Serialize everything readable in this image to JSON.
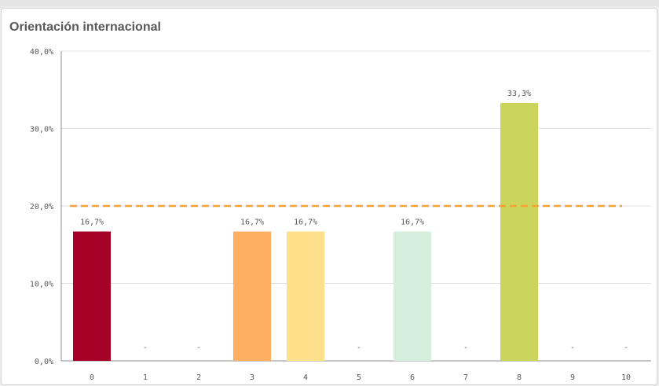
{
  "chart_data": {
    "type": "bar",
    "title": "Orientación internacional",
    "xlabel": "",
    "ylabel": "",
    "categories": [
      "0",
      "1",
      "2",
      "3",
      "4",
      "5",
      "6",
      "7",
      "8",
      "9",
      "10"
    ],
    "values": [
      16.7,
      null,
      null,
      16.7,
      16.7,
      null,
      16.7,
      null,
      33.3,
      null,
      null
    ],
    "value_labels": [
      "16,7%",
      "-",
      "-",
      "16,7%",
      "16,7%",
      "-",
      "16,7%",
      "-",
      "33,3%",
      "-",
      "-"
    ],
    "bar_colors": [
      "#a50026",
      null,
      null,
      "#fdae61",
      "#fee08b",
      null,
      "#d5efdc",
      null,
      "#ccd55b",
      null,
      null
    ],
    "reference_line": {
      "value": 20,
      "color": "#f7a432",
      "style": "dashed"
    },
    "ylim": [
      0,
      40
    ],
    "yticks": [
      0,
      10,
      20,
      30,
      40
    ],
    "ytick_labels": [
      "0,0%",
      "10,0%",
      "20,0%",
      "30,0%",
      "40,0%"
    ],
    "grid": true
  }
}
